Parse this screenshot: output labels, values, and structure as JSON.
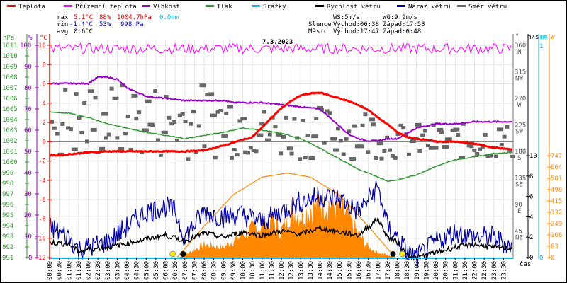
{
  "chart_data": {
    "type": "line",
    "title": "7.3.2023",
    "legend_placement": "top",
    "legend": [
      {
        "name": "Teplota",
        "color": "#ff0000"
      },
      {
        "name": "Přízemní teplota",
        "color": "#ff00ff"
      },
      {
        "name": "Vlhkost",
        "color": "#9900cc"
      },
      {
        "name": "Tlak",
        "color": "#339933"
      },
      {
        "name": "Srážky",
        "color": "#00bbee"
      },
      {
        "name": "Rychlost větru",
        "color": "#000000"
      },
      {
        "name": "Náraz větru",
        "color": "#0000aa"
      },
      {
        "name": "Směr větru",
        "color": "#666666"
      }
    ],
    "stats": {
      "max": {
        "label": "max",
        "temp": "5.1°C",
        "hum": "88%",
        "press": "1004.7hPa",
        "rain": "0.0mm"
      },
      "min": {
        "label": "min",
        "temp": "-1.4°C",
        "hum": "53%",
        "press": "998hPa"
      },
      "avg": {
        "label": "avg",
        "temp": "0.6°C"
      },
      "ws": "WS:5m/s",
      "wg": "WG:9.9m/s",
      "sun": {
        "label": "Slunce",
        "rise": "Východ:06:38",
        "set": "Západ:17:58"
      },
      "moon": {
        "label": "Měsíc",
        "rise": "Východ:17:47",
        "set": "Západ:6:48"
      }
    },
    "axes": {
      "pressure": {
        "unit": "hPa",
        "ticks": [
          "1011",
          "1010",
          "1009",
          "1008",
          "1007",
          "1006",
          "1005",
          "1004",
          "1003",
          "1002",
          "1001",
          "1000",
          "999",
          "998",
          "997",
          "996",
          "995",
          "994",
          "993",
          "992",
          "991"
        ],
        "range": [
          991,
          1011
        ]
      },
      "humidity": {
        "unit": "%",
        "ticks": [
          "100",
          "90",
          "80",
          "70",
          "60",
          "50",
          "40",
          "30",
          "20",
          "10",
          "0"
        ],
        "range": [
          0,
          100
        ]
      },
      "temperature": {
        "unit": "°C",
        "ticks": [
          "10",
          "8",
          "6",
          "4",
          "2",
          "0",
          "-2",
          "-4",
          "-6",
          "-8",
          "-10",
          "-12"
        ],
        "range": [
          -12,
          10
        ]
      },
      "direction": {
        "unit": "°",
        "ticks": [
          {
            "v": "360",
            "d": "N"
          },
          {
            "v": "315",
            "d": "NW"
          },
          {
            "v": "270",
            "d": "W"
          },
          {
            "v": "225",
            "d": "SW"
          },
          {
            "v": "180",
            "d": "S"
          },
          {
            "v": "135",
            "d": "SE"
          },
          {
            "v": "90",
            "d": "E"
          },
          {
            "v": "45",
            "d": "NE"
          }
        ],
        "range": [
          0,
          360
        ]
      },
      "wind": {
        "unit": "m/s",
        "ticks": [
          "10",
          "8",
          "6",
          "4",
          "2",
          "0"
        ],
        "range": [
          0,
          10
        ]
      },
      "rain": {
        "unit": "mm",
        "ticks": [
          "1",
          "0"
        ],
        "range": [
          0,
          1
        ]
      },
      "solar": {
        "unit": "W",
        "ticks": [
          "747",
          "664",
          "581",
          "498",
          "415",
          "332",
          "249",
          "166",
          "83",
          "0"
        ],
        "range": [
          0,
          747
        ]
      },
      "time": {
        "label": "čas",
        "ticks": [
          "00:00",
          "00:30",
          "01:00",
          "01:30",
          "02:00",
          "02:30",
          "03:00",
          "03:30",
          "04:00",
          "04:30",
          "05:00",
          "05:30",
          "06:00",
          "06:30",
          "07:00",
          "07:30",
          "08:00",
          "08:30",
          "09:00",
          "09:30",
          "10:00",
          "10:30",
          "11:00",
          "11:30",
          "12:00",
          "12:30",
          "13:00",
          "13:30",
          "14:00",
          "14:30",
          "15:00",
          "15:30",
          "16:00",
          "16:30",
          "17:00",
          "17:30",
          "18:00",
          "18:30",
          "19:00",
          "19:30",
          "20:00",
          "20:30",
          "21:00",
          "21:30",
          "22:00",
          "22:30",
          "23:00",
          "23:30"
        ]
      }
    },
    "series": {
      "temperature": {
        "x_hours": [
          0,
          0.5,
          1,
          1.5,
          2,
          3,
          4,
          5,
          6,
          7,
          8,
          9,
          9.5,
          10,
          10.5,
          11,
          11.5,
          12,
          12.5,
          13,
          13.5,
          14,
          14.5,
          15,
          15.5,
          16,
          16.5,
          17,
          17.5,
          18,
          18.5,
          19,
          19.5,
          20,
          21,
          22,
          23,
          24
        ],
        "values": [
          -1.4,
          -1.4,
          -1.3,
          -1.2,
          -1.1,
          -1,
          -1,
          -1,
          -1,
          -1,
          -0.9,
          -0.4,
          -0.1,
          0.2,
          0.5,
          1.5,
          2.5,
          3.5,
          4.2,
          4.8,
          5.0,
          5.1,
          4.8,
          4.5,
          4.2,
          3.8,
          3.3,
          2.5,
          1.8,
          1.0,
          0.5,
          0.3,
          0.2,
          0.0,
          0.0,
          -0.2,
          -0.6,
          -0.8
        ]
      },
      "ground_temperature": {
        "x_hours": [
          0,
          24
        ],
        "values": [
          9.4,
          9.4
        ],
        "min": 9.1,
        "max": 10.2
      },
      "humidity_pct": {
        "x_hours": [
          0,
          0.3,
          1,
          2,
          2.5,
          3,
          3.5,
          4,
          4.5,
          5,
          6,
          7,
          8,
          9,
          9.5,
          10,
          11,
          12,
          13,
          14,
          14.5,
          15,
          15.5,
          16,
          16.5,
          17,
          17.5,
          18,
          19,
          20,
          21,
          22,
          23,
          24
        ],
        "values": [
          82,
          82,
          82,
          82,
          85,
          85,
          84,
          80,
          78,
          76,
          75,
          74,
          74,
          74,
          73,
          73,
          73,
          72,
          71,
          70,
          66,
          62,
          58,
          56,
          55,
          55,
          56,
          56,
          61,
          63,
          63,
          64,
          64,
          64
        ]
      },
      "pressure_hpa": {
        "x_hours": [
          0,
          1,
          2,
          3,
          4,
          5,
          6,
          7,
          8,
          9,
          10,
          11,
          12,
          13,
          14,
          15,
          16,
          17,
          17.5,
          18,
          19,
          20,
          21,
          22,
          23,
          24
        ],
        "values": [
          1004.7,
          1004.6,
          1004.2,
          1003.6,
          1003.2,
          1002.8,
          1002.5,
          1002.2,
          1002.5,
          1002.8,
          1003.2,
          1003.0,
          1002.7,
          1002.2,
          1001.3,
          1000.3,
          999.3,
          998.6,
          998.2,
          998.3,
          998.8,
          999.6,
          1000.2,
          1000.5,
          1000.8,
          1000.9
        ]
      },
      "wind_speed_ms": {
        "x_hours": [
          0,
          1,
          1.5,
          2,
          3,
          4,
          5,
          6,
          7,
          8,
          9,
          10,
          11,
          12,
          13,
          14,
          15,
          16,
          17,
          17.5,
          18,
          18.5,
          19,
          20,
          21,
          22,
          23,
          24
        ],
        "values": [
          1.5,
          1.3,
          0.6,
          0.8,
          1.0,
          1.4,
          1.8,
          2.2,
          1.6,
          2.4,
          2.0,
          2.5,
          2.2,
          2.6,
          2.3,
          2.9,
          2.5,
          2.2,
          3.8,
          2.0,
          1.5,
          0.3,
          0,
          0.5,
          1.0,
          1.3,
          1.0,
          0.9
        ]
      },
      "wind_gust_ms": {
        "x_hours": [
          0,
          1,
          1.5,
          2,
          3,
          4,
          5,
          6,
          6.5,
          7,
          8,
          9,
          10,
          11,
          12,
          13,
          14,
          15,
          16,
          17,
          17.5,
          18,
          18.5,
          19,
          20,
          21,
          22,
          23,
          24
        ],
        "values": [
          3.0,
          2.0,
          0.8,
          1.0,
          1.5,
          3.0,
          4.5,
          5.0,
          4.5,
          2.0,
          4.5,
          4.0,
          4.2,
          3.5,
          4.5,
          5.5,
          6.0,
          5.8,
          4.5,
          6.9,
          3.0,
          2.0,
          0.5,
          0,
          1.5,
          2.5,
          2.0,
          2.0,
          1.0
        ]
      },
      "solar_w": {
        "x_hours": [
          6.7,
          7,
          8,
          9,
          10,
          11,
          11.5,
          12,
          12.5,
          13,
          14,
          14.5,
          15,
          15.5,
          16,
          16.5,
          17,
          17.5,
          17.9
        ],
        "values": [
          0,
          20,
          100,
          80,
          180,
          250,
          300,
          200,
          380,
          330,
          440,
          420,
          390,
          300,
          180,
          80,
          40,
          20,
          0
        ]
      },
      "sun_elevation_curve": {
        "x_hours": [
          6.6,
          8,
          9.5,
          11,
          12.3,
          13.5,
          15,
          16.5,
          17.9
        ],
        "values": [
          0,
          230,
          460,
          590,
          620,
          590,
          460,
          230,
          0
        ]
      }
    }
  }
}
